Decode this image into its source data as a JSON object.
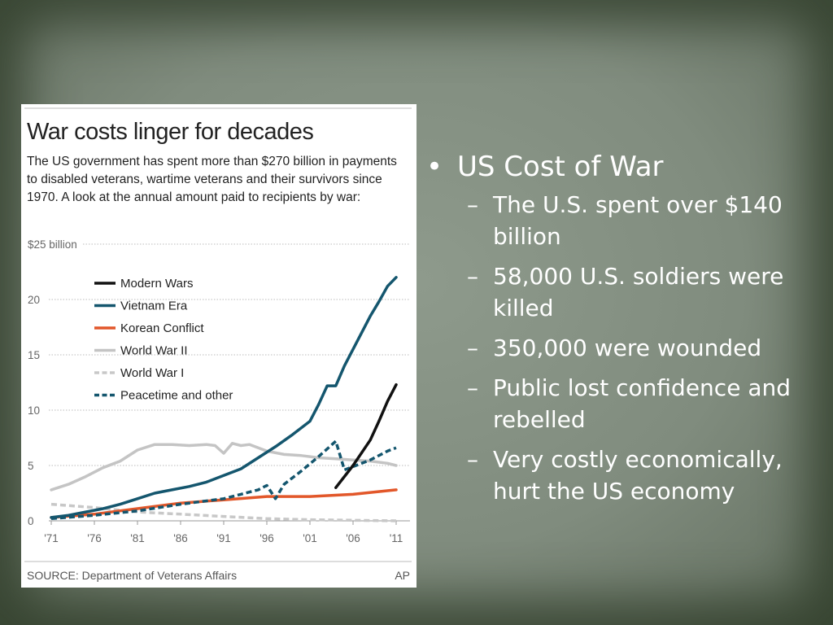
{
  "chart_data": {
    "type": "line",
    "title": "War costs linger for decades",
    "subtitle": "The US government has spent more than $270 billion in payments to disabled veterans, wartime veterans and their survivors since 1970. A look at the annual amount paid to recipients by war:",
    "ylim": [
      0,
      25
    ],
    "xlim": [
      1971,
      2011
    ],
    "y_ticks": [
      0,
      5,
      10,
      15,
      20,
      25
    ],
    "y_tick_labels": [
      "0",
      "5",
      "10",
      "15",
      "20",
      "$25 billion"
    ],
    "x_ticks": [
      1971,
      1976,
      1981,
      1986,
      1991,
      1996,
      2001,
      2006,
      2011
    ],
    "x_tick_labels": [
      "'71",
      "'76",
      "'81",
      "'86",
      "'91",
      "'96",
      "'01",
      "'06",
      "'11"
    ],
    "grid": "horizontal dotted",
    "legend_position": "top-left",
    "series": [
      {
        "name": "Modern Wars",
        "color": "#111111",
        "dash": "solid",
        "x": [
          2004,
          2006,
          2008,
          2009,
          2010,
          2011
        ],
        "y": [
          3.0,
          5.0,
          7.3,
          9.0,
          10.8,
          12.3
        ]
      },
      {
        "name": "Vietnam Era",
        "color": "#14566e",
        "dash": "solid",
        "x": [
          1971,
          1973,
          1975,
          1977,
          1979,
          1981,
          1983,
          1985,
          1987,
          1989,
          1991,
          1993,
          1995,
          1997,
          1999,
          2001,
          2002,
          2003,
          2004,
          2005,
          2006,
          2007,
          2008,
          2009,
          2010,
          2011
        ],
        "y": [
          0.3,
          0.5,
          0.8,
          1.1,
          1.5,
          2.0,
          2.5,
          2.8,
          3.1,
          3.5,
          4.1,
          4.7,
          5.7,
          6.7,
          7.8,
          9.0,
          10.5,
          12.2,
          12.2,
          14.0,
          15.5,
          17.0,
          18.5,
          19.8,
          21.2,
          22.0
        ]
      },
      {
        "name": "Korean Conflict",
        "color": "#e2572a",
        "dash": "solid",
        "x": [
          1971,
          1976,
          1981,
          1986,
          1991,
          1996,
          2001,
          2006,
          2011
        ],
        "y": [
          0.3,
          0.6,
          1.1,
          1.6,
          1.9,
          2.2,
          2.2,
          2.4,
          2.8
        ]
      },
      {
        "name": "World War II",
        "color": "#c4c4c4",
        "dash": "solid",
        "x": [
          1971,
          1973,
          1975,
          1977,
          1979,
          1981,
          1983,
          1985,
          1987,
          1989,
          1990,
          1991,
          1992,
          1993,
          1994,
          1996,
          1998,
          2000,
          2002,
          2004,
          2006,
          2008,
          2010,
          2011
        ],
        "y": [
          2.8,
          3.3,
          4.0,
          4.8,
          5.4,
          6.4,
          6.9,
          6.9,
          6.8,
          6.9,
          6.8,
          6.1,
          7.0,
          6.8,
          6.9,
          6.3,
          6.0,
          5.9,
          5.7,
          5.6,
          5.5,
          5.4,
          5.2,
          5.0
        ]
      },
      {
        "name": "World War I",
        "color": "#c8c8c8",
        "dash": "dashed",
        "x": [
          1971,
          1976,
          1981,
          1986,
          1991,
          1996,
          2001,
          2006,
          2011
        ],
        "y": [
          1.5,
          1.2,
          0.8,
          0.6,
          0.4,
          0.2,
          0.1,
          0.05,
          0.0
        ]
      },
      {
        "name": "Peacetime and other",
        "color": "#14566e",
        "dash": "dashed",
        "x": [
          1971,
          1976,
          1981,
          1986,
          1991,
          1993,
          1995,
          1996,
          1997,
          1998,
          2000,
          2002,
          2004,
          2005,
          2006,
          2008,
          2010,
          2011
        ],
        "y": [
          0.2,
          0.5,
          0.9,
          1.5,
          2.0,
          2.4,
          2.8,
          3.2,
          2.0,
          3.3,
          4.5,
          5.8,
          7.2,
          4.6,
          4.9,
          5.5,
          6.3,
          6.6
        ]
      }
    ]
  },
  "source": "SOURCE: Department of Veterans Affairs",
  "credit": "AP",
  "bullets": {
    "heading": "US Cost of War",
    "items": [
      "The U.S. spent over $140 billion",
      "58,000 U.S. soldiers were killed",
      "350,000 were wounded",
      "Public lost confidence and rebelled",
      "Very costly economically, hurt the US economy"
    ]
  }
}
